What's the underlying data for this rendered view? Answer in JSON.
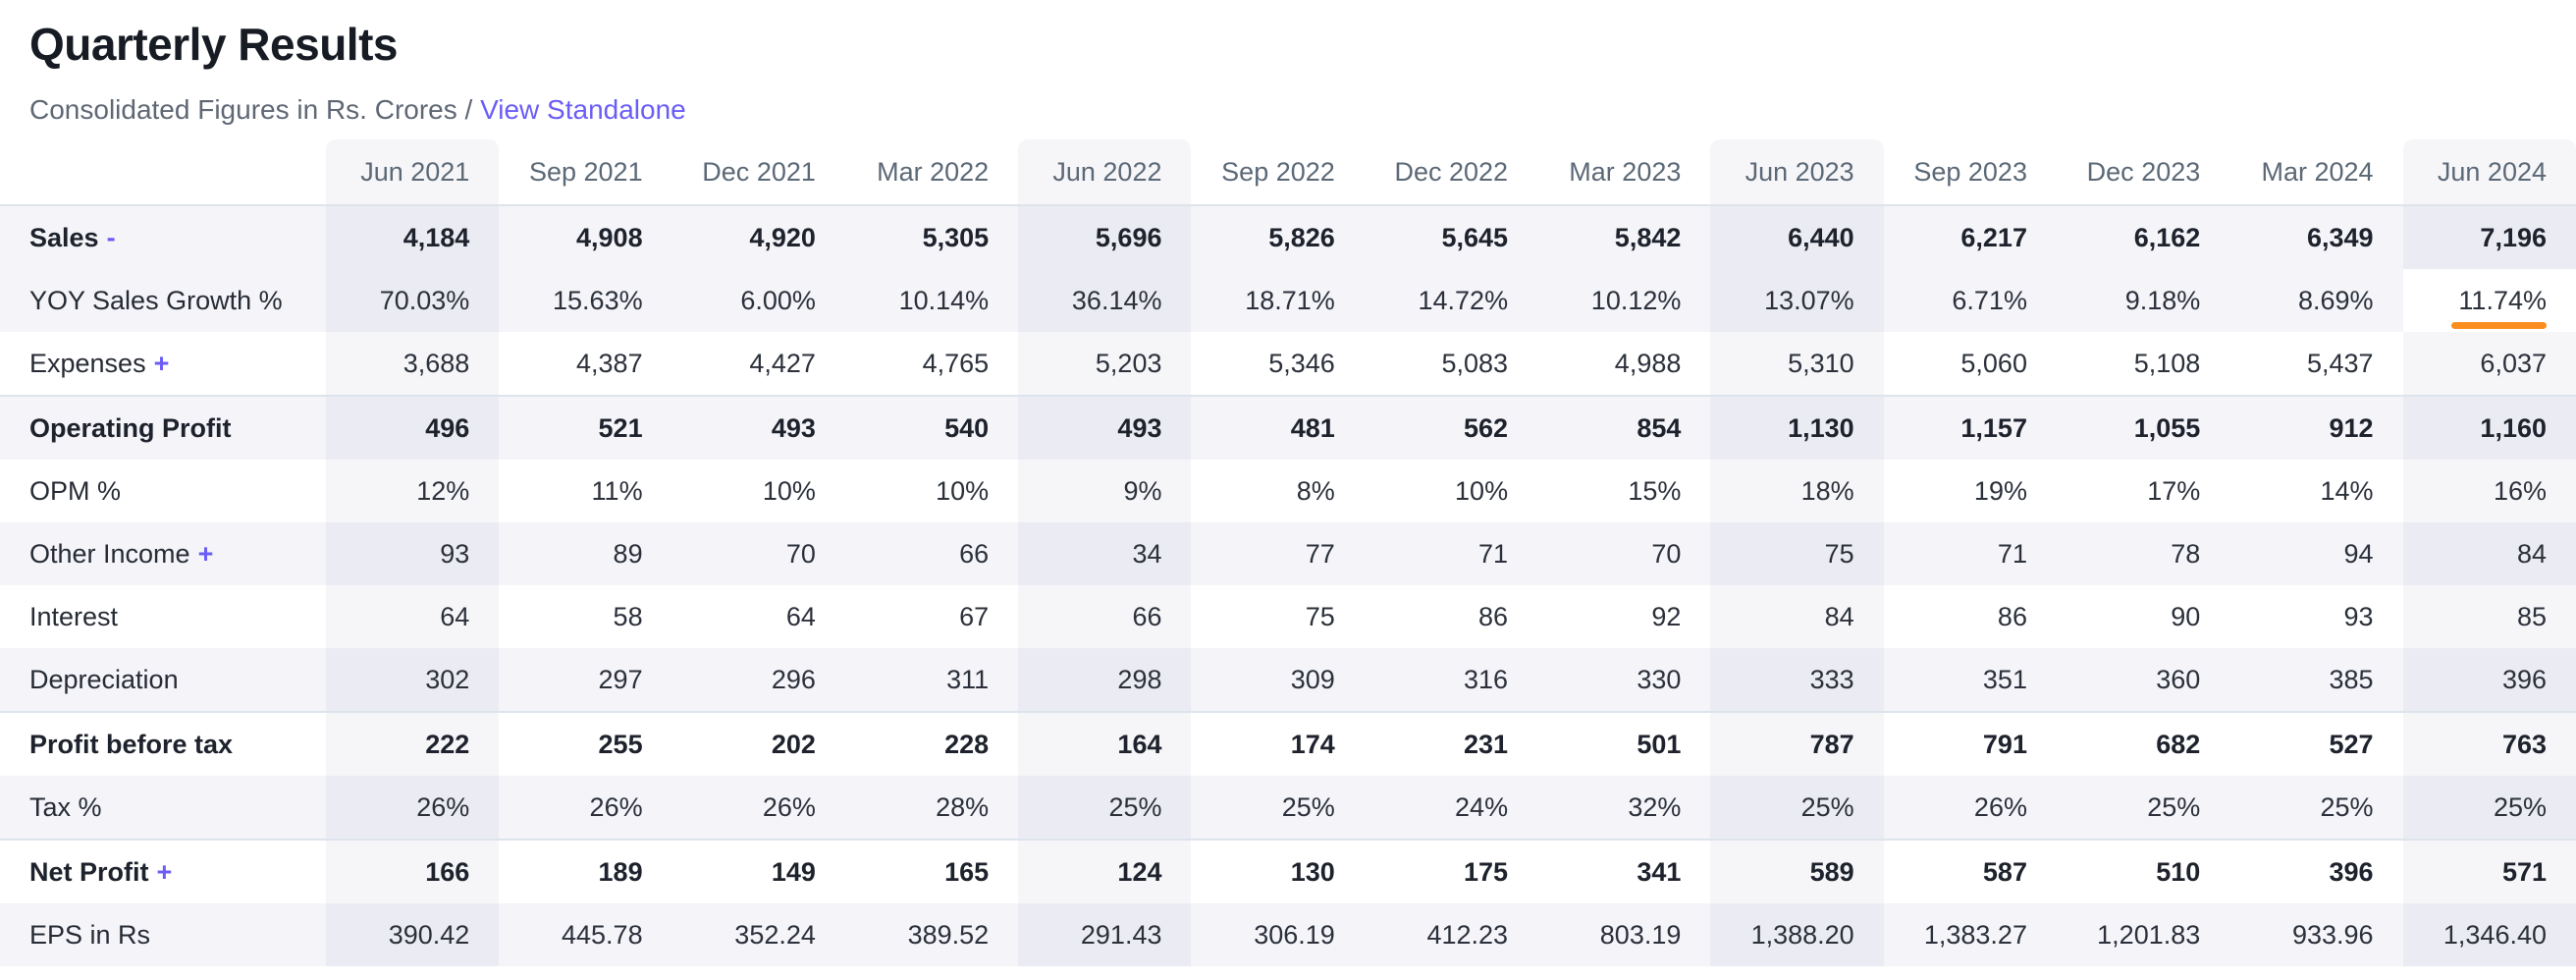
{
  "header": {
    "title": "Quarterly Results",
    "subtitle": "Consolidated Figures in Rs. Crores /",
    "link_label": "View Standalone"
  },
  "colors": {
    "accent": "#6a5cf5",
    "orange": "#fb8d1e",
    "stripe": "#f4f4f9",
    "border": "#dde4ec",
    "header_text": "#5b6876",
    "subtitle_text": "#5f6774",
    "col_highlight": "rgba(88,88,140,0.055)"
  },
  "table": {
    "columns": [
      "Jun 2021",
      "Sep 2021",
      "Dec 2021",
      "Mar 2022",
      "Jun 2022",
      "Sep 2022",
      "Dec 2022",
      "Mar 2023",
      "Jun 2023",
      "Sep 2023",
      "Dec 2023",
      "Mar 2024",
      "Jun 2024"
    ],
    "highlighted_columns": [
      0,
      4,
      8,
      12
    ],
    "rows": [
      {
        "label": "Sales",
        "toggle": "-",
        "bold": true,
        "striped": true,
        "section": false,
        "values": [
          "4,184",
          "4,908",
          "4,920",
          "5,305",
          "5,696",
          "5,826",
          "5,645",
          "5,842",
          "6,440",
          "6,217",
          "6,162",
          "6,349",
          "7,196"
        ]
      },
      {
        "label": "YOY Sales Growth %",
        "toggle": null,
        "bold": false,
        "striped": true,
        "section": false,
        "selected_col": 12,
        "values": [
          "70.03%",
          "15.63%",
          "6.00%",
          "10.14%",
          "36.14%",
          "18.71%",
          "14.72%",
          "10.12%",
          "13.07%",
          "6.71%",
          "9.18%",
          "8.69%",
          "11.74%"
        ]
      },
      {
        "label": "Expenses",
        "toggle": "+",
        "bold": false,
        "striped": false,
        "section": false,
        "values": [
          "3,688",
          "4,387",
          "4,427",
          "4,765",
          "5,203",
          "5,346",
          "5,083",
          "4,988",
          "5,310",
          "5,060",
          "5,108",
          "5,437",
          "6,037"
        ]
      },
      {
        "label": "Operating Profit",
        "toggle": null,
        "bold": true,
        "striped": true,
        "section": true,
        "values": [
          "496",
          "521",
          "493",
          "540",
          "493",
          "481",
          "562",
          "854",
          "1,130",
          "1,157",
          "1,055",
          "912",
          "1,160"
        ]
      },
      {
        "label": "OPM %",
        "toggle": null,
        "bold": false,
        "striped": false,
        "section": false,
        "values": [
          "12%",
          "11%",
          "10%",
          "10%",
          "9%",
          "8%",
          "10%",
          "15%",
          "18%",
          "19%",
          "17%",
          "14%",
          "16%"
        ]
      },
      {
        "label": "Other Income",
        "toggle": "+",
        "bold": false,
        "striped": true,
        "section": false,
        "values": [
          "93",
          "89",
          "70",
          "66",
          "34",
          "77",
          "71",
          "70",
          "75",
          "71",
          "78",
          "94",
          "84"
        ]
      },
      {
        "label": "Interest",
        "toggle": null,
        "bold": false,
        "striped": false,
        "section": false,
        "values": [
          "64",
          "58",
          "64",
          "67",
          "66",
          "75",
          "86",
          "92",
          "84",
          "86",
          "90",
          "93",
          "85"
        ]
      },
      {
        "label": "Depreciation",
        "toggle": null,
        "bold": false,
        "striped": true,
        "section": false,
        "values": [
          "302",
          "297",
          "296",
          "311",
          "298",
          "309",
          "316",
          "330",
          "333",
          "351",
          "360",
          "385",
          "396"
        ]
      },
      {
        "label": "Profit before tax",
        "toggle": null,
        "bold": true,
        "striped": false,
        "section": true,
        "values": [
          "222",
          "255",
          "202",
          "228",
          "164",
          "174",
          "231",
          "501",
          "787",
          "791",
          "682",
          "527",
          "763"
        ]
      },
      {
        "label": "Tax %",
        "toggle": null,
        "bold": false,
        "striped": true,
        "section": false,
        "values": [
          "26%",
          "26%",
          "26%",
          "28%",
          "25%",
          "25%",
          "24%",
          "32%",
          "25%",
          "26%",
          "25%",
          "25%",
          "25%"
        ]
      },
      {
        "label": "Net Profit",
        "toggle": "+",
        "bold": true,
        "striped": false,
        "section": true,
        "values": [
          "166",
          "189",
          "149",
          "165",
          "124",
          "130",
          "175",
          "341",
          "589",
          "587",
          "510",
          "396",
          "571"
        ]
      },
      {
        "label": "EPS in Rs",
        "toggle": null,
        "bold": false,
        "striped": true,
        "section": false,
        "values": [
          "390.42",
          "445.78",
          "352.24",
          "389.52",
          "291.43",
          "306.19",
          "412.23",
          "803.19",
          "1,388.20",
          "1,383.27",
          "1,201.83",
          "933.96",
          "1,346.40"
        ]
      }
    ]
  }
}
